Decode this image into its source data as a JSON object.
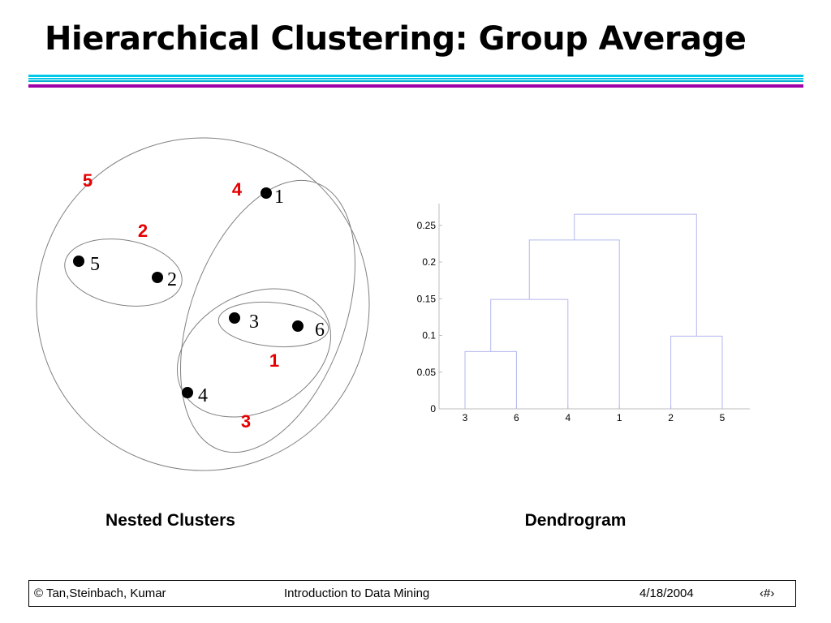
{
  "slide": {
    "title": "Hierarchical Clustering: Group Average",
    "accent_color": "#e60000",
    "rule_colors": {
      "cyan": "#00c8e6",
      "purple": "#a000a8"
    }
  },
  "nested_clusters": {
    "caption": "Nested Clusters",
    "points": [
      {
        "id": "1",
        "label": "1"
      },
      {
        "id": "2",
        "label": "2"
      },
      {
        "id": "3",
        "label": "3"
      },
      {
        "id": "4",
        "label": "4"
      },
      {
        "id": "5",
        "label": "5"
      },
      {
        "id": "6",
        "label": "6"
      }
    ],
    "clusters": [
      {
        "order": "1",
        "members": [
          "3",
          "6"
        ]
      },
      {
        "order": "2",
        "members": [
          "5",
          "2"
        ]
      },
      {
        "order": "3",
        "members": [
          "3",
          "6",
          "4"
        ]
      },
      {
        "order": "4",
        "members": [
          "3",
          "6",
          "4",
          "1"
        ]
      },
      {
        "order": "5",
        "members": [
          "3",
          "6",
          "4",
          "1",
          "5",
          "2"
        ]
      }
    ]
  },
  "chart_data": {
    "type": "dendrogram",
    "caption": "Dendrogram",
    "leaves": [
      "3",
      "6",
      "4",
      "1",
      "2",
      "5"
    ],
    "y_ticks": [
      "0",
      "0.05",
      "0.1",
      "0.15",
      "0.2",
      "0.25"
    ],
    "ylim": [
      0,
      0.27
    ],
    "merges": [
      {
        "left": "3",
        "right": "6",
        "height": 0.078
      },
      {
        "left": "2",
        "right": "5",
        "height": 0.099
      },
      {
        "left": "(3,6)",
        "right": "4",
        "height": 0.149
      },
      {
        "left": "((3,6),4)",
        "right": "1",
        "height": 0.23
      },
      {
        "left": "(((3,6),4),1)",
        "right": "(2,5)",
        "height": 0.265
      }
    ]
  },
  "footer": {
    "copyright": "© Tan,Steinbach, Kumar",
    "course": "Introduction to Data Mining",
    "date": "4/18/2004",
    "page": "‹#›"
  }
}
